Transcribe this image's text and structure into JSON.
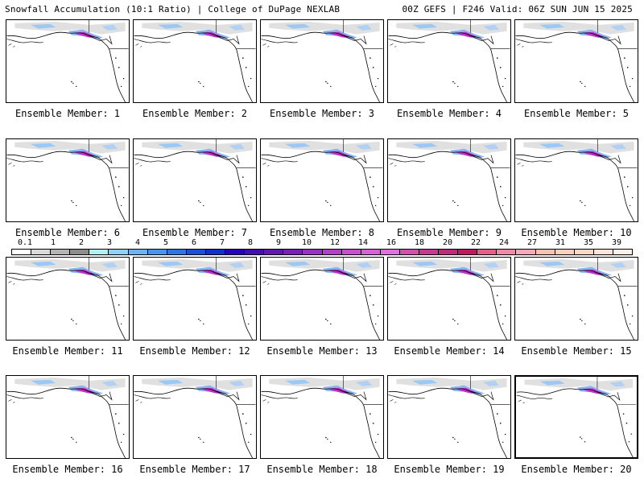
{
  "header": {
    "title": "Snowfall Accumulation (10:1 Ratio) | College of DuPage NEXLAB",
    "run_info": "00Z GEFS | F246 Valid: 06Z SUN JUN 15 2025"
  },
  "panels": [
    {
      "label": "Ensemble Member: 1"
    },
    {
      "label": "Ensemble Member: 2"
    },
    {
      "label": "Ensemble Member: 3"
    },
    {
      "label": "Ensemble Member: 4"
    },
    {
      "label": "Ensemble Member: 5"
    },
    {
      "label": "Ensemble Member: 6"
    },
    {
      "label": "Ensemble Member: 7"
    },
    {
      "label": "Ensemble Member: 8"
    },
    {
      "label": "Ensemble Member: 9"
    },
    {
      "label": "Ensemble Member: 10"
    },
    {
      "label": "Ensemble Member: 11"
    },
    {
      "label": "Ensemble Member: 12"
    },
    {
      "label": "Ensemble Member: 13"
    },
    {
      "label": "Ensemble Member: 14"
    },
    {
      "label": "Ensemble Member: 15"
    },
    {
      "label": "Ensemble Member: 16"
    },
    {
      "label": "Ensemble Member: 17"
    },
    {
      "label": "Ensemble Member: 18"
    },
    {
      "label": "Ensemble Member: 19"
    },
    {
      "label": "Ensemble Member: 20"
    }
  ],
  "colorbar": {
    "labels": [
      "0.1",
      "1",
      "2",
      "3",
      "4",
      "5",
      "6",
      "7",
      "8",
      "9",
      "10",
      "12",
      "14",
      "16",
      "18",
      "20",
      "22",
      "24",
      "27",
      "31",
      "35",
      "39"
    ],
    "colors": [
      "#ffffff",
      "#d9d9d9",
      "#b4b4b4",
      "#8c8c8c",
      "#b0f0f0",
      "#8ed0f8",
      "#6ab4f4",
      "#4a94ec",
      "#2e74e4",
      "#1a50d8",
      "#1030c8",
      "#2800c0",
      "#4010b0",
      "#6018b0",
      "#7a20b8",
      "#9830c0",
      "#b040c8",
      "#c850d0",
      "#d860d8",
      "#e070e0",
      "#d050b0",
      "#c83890",
      "#c02878",
      "#c01860",
      "#e06088",
      "#f088a8",
      "#f8a8b8",
      "#f8c0b0",
      "#f8d0c0",
      "#fad8c8",
      "#fce4d8",
      "#fef0e8"
    ]
  }
}
